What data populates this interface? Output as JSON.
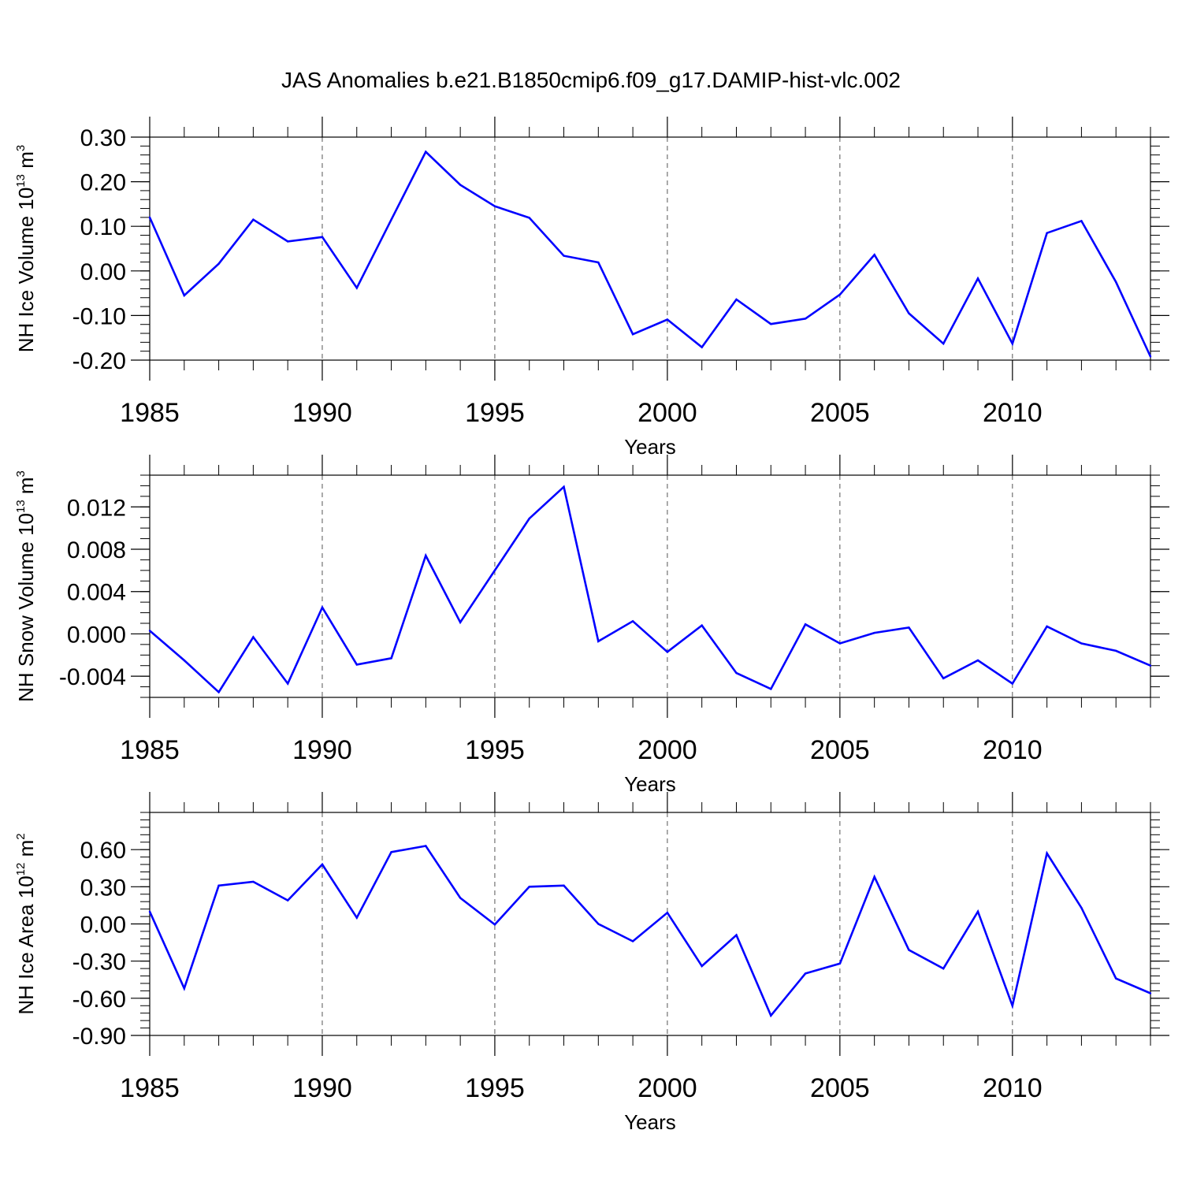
{
  "figure": {
    "title": "JAS Anomalies b.e21.B1850cmip6.f09_g17.DAMIP-hist-vlc.002",
    "line_color": "#0000ff"
  },
  "chart_data": [
    {
      "type": "line",
      "ylabel": {
        "base": "NH Ice Volume 10",
        "sup": "13",
        "unit": " m",
        "unit_sup": "3"
      },
      "xlabel": "Years",
      "xlim": [
        1985,
        2014
      ],
      "ylim": [
        -0.2,
        0.3
      ],
      "xticks": [
        1985,
        1990,
        1995,
        2000,
        2005,
        2010
      ],
      "xtick_labels": [
        "1985",
        "1990",
        "1995",
        "2000",
        "2005",
        "2010"
      ],
      "yticks": [
        -0.2,
        -0.1,
        0.0,
        0.1,
        0.2,
        0.3
      ],
      "ytick_labels": [
        "-0.20",
        "-0.10",
        "0.00",
        "0.10",
        "0.20",
        "0.30"
      ],
      "ytick_minor_step": 0.02,
      "grid": "vertical dashed at major x ticks",
      "x": [
        1985,
        1986,
        1987,
        1988,
        1989,
        1990,
        1991,
        1992,
        1993,
        1994,
        1995,
        1996,
        1997,
        1998,
        1999,
        2000,
        2001,
        2002,
        2003,
        2004,
        2005,
        2006,
        2007,
        2008,
        2009,
        2010,
        2011,
        2012,
        2013,
        2014
      ],
      "series": [
        {
          "values": [
            0.12,
            -0.055,
            0.016,
            0.115,
            0.066,
            0.076,
            -0.038,
            0.115,
            0.267,
            0.193,
            0.145,
            0.119,
            0.034,
            0.019,
            -0.142,
            -0.109,
            -0.171,
            -0.064,
            -0.119,
            -0.107,
            -0.053,
            0.036,
            -0.095,
            -0.163,
            -0.017,
            -0.163,
            0.085,
            0.112,
            -0.025,
            -0.192
          ]
        }
      ]
    },
    {
      "type": "line",
      "ylabel": {
        "base": "NH Snow Volume 10",
        "sup": "13",
        "unit": " m",
        "unit_sup": "3"
      },
      "xlabel": "Years",
      "xlim": [
        1985,
        2014
      ],
      "ylim": [
        -0.006,
        0.015
      ],
      "xticks": [
        1985,
        1990,
        1995,
        2000,
        2005,
        2010
      ],
      "xtick_labels": [
        "1985",
        "1990",
        "1995",
        "2000",
        "2005",
        "2010"
      ],
      "yticks": [
        -0.004,
        0.0,
        0.004,
        0.008,
        0.012
      ],
      "ytick_labels": [
        "-0.004",
        "0.000",
        "0.004",
        "0.008",
        "0.012"
      ],
      "ytick_minor_step": 0.001,
      "grid": "vertical dashed at major x ticks",
      "x": [
        1985,
        1986,
        1987,
        1988,
        1989,
        1990,
        1991,
        1992,
        1993,
        1994,
        1995,
        1996,
        1997,
        1998,
        1999,
        2000,
        2001,
        2002,
        2003,
        2004,
        2005,
        2006,
        2007,
        2008,
        2009,
        2010,
        2011,
        2012,
        2013,
        2014
      ],
      "series": [
        {
          "values": [
            0.0003,
            -0.0025,
            -0.0055,
            -0.0003,
            -0.0047,
            0.0025,
            -0.0029,
            -0.0023,
            0.0074,
            0.0011,
            0.006,
            0.0109,
            0.0139,
            -0.0007,
            0.0012,
            -0.0017,
            0.0008,
            -0.0037,
            -0.0052,
            0.0009,
            -0.0009,
            0.0001,
            0.0006,
            -0.0042,
            -0.0025,
            -0.0047,
            0.0007,
            -0.0009,
            -0.0016,
            -0.003
          ]
        }
      ]
    },
    {
      "type": "line",
      "ylabel": {
        "base": "NH Ice Area 10",
        "sup": "12",
        "unit": " m",
        "unit_sup": "2"
      },
      "xlabel": "Years",
      "xlim": [
        1985,
        2014
      ],
      "ylim": [
        -0.9,
        0.9
      ],
      "xticks": [
        1985,
        1990,
        1995,
        2000,
        2005,
        2010
      ],
      "xtick_labels": [
        "1985",
        "1990",
        "1995",
        "2000",
        "2005",
        "2010"
      ],
      "yticks": [
        -0.9,
        -0.6,
        -0.3,
        0.0,
        0.3,
        0.6
      ],
      "ytick_labels": [
        "-0.90",
        "-0.60",
        "-0.30",
        "0.00",
        "0.30",
        "0.60"
      ],
      "ytick_minor_step": 0.06,
      "grid": "vertical dashed at major x ticks",
      "x": [
        1985,
        1986,
        1987,
        1988,
        1989,
        1990,
        1991,
        1992,
        1993,
        1994,
        1995,
        1996,
        1997,
        1998,
        1999,
        2000,
        2001,
        2002,
        2003,
        2004,
        2005,
        2006,
        2007,
        2008,
        2009,
        2010,
        2011,
        2012,
        2013,
        2014
      ],
      "series": [
        {
          "values": [
            0.1,
            -0.52,
            0.31,
            0.34,
            0.19,
            0.48,
            0.05,
            0.58,
            0.63,
            0.21,
            -0.005,
            0.3,
            0.31,
            0.0,
            -0.14,
            0.09,
            -0.34,
            -0.09,
            -0.74,
            -0.4,
            -0.32,
            0.38,
            -0.21,
            -0.36,
            0.1,
            -0.66,
            0.57,
            0.13,
            -0.44,
            -0.56
          ]
        }
      ]
    }
  ]
}
